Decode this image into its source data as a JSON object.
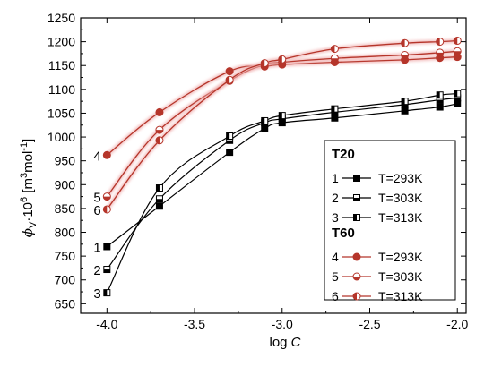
{
  "chart_data": {
    "type": "line",
    "xlabel_prefix": "log ",
    "xlabel_var": "C",
    "ylabel_phi": "ϕ",
    "ylabel_sub": "V",
    "ylabel_rest": "·10",
    "ylabel_exp": "6",
    "ylabel_unit_open": " [m",
    "ylabel_unit_3": "3",
    "ylabel_unit_mol": "mol",
    "ylabel_unit_m1": "-1",
    "ylabel_unit_close": "]",
    "xlim": [
      -4.15,
      -1.95
    ],
    "ylim": [
      630,
      1250
    ],
    "xticks": [
      -4.0,
      -3.5,
      -3.0,
      -2.5,
      -2.0
    ],
    "xtick_labels": [
      "-4.0",
      "-3.5",
      "-3.0",
      "-2.5",
      "-2.0"
    ],
    "yticks": [
      650,
      700,
      750,
      800,
      850,
      900,
      950,
      1000,
      1050,
      1100,
      1150,
      1200,
      1250
    ],
    "ytick_labels": [
      "650",
      "700",
      "750",
      "800",
      "850",
      "900",
      "950",
      "1000",
      "1050",
      "1100",
      "1150",
      "1200",
      "1250"
    ],
    "x": [
      -4.0,
      -3.7,
      -3.3,
      -3.1,
      -3.0,
      -2.7,
      -2.3,
      -2.1,
      -2.0
    ],
    "groups": [
      {
        "name": "T20",
        "color": "#000000",
        "series": [
          {
            "id": "1",
            "name": "T=293K",
            "marker": "full",
            "values": [
              770,
              855,
              968,
              1018,
              1030,
              1040,
              1055,
              1063,
              1070
            ]
          },
          {
            "id": "2",
            "name": "T=303K",
            "marker": "bottom",
            "values": [
              722,
              870,
              993,
              1030,
              1038,
              1052,
              1068,
              1078,
              1082
            ]
          },
          {
            "id": "3",
            "name": "T=313K",
            "marker": "left",
            "values": [
              673,
              893,
              1002,
              1034,
              1045,
              1059,
              1075,
              1088,
              1091
            ]
          }
        ]
      },
      {
        "name": "T60",
        "color": "#b5352a",
        "series": [
          {
            "id": "4",
            "name": "T=293K",
            "marker": "full",
            "values": [
              962,
              1052,
              1138,
              1148,
              1152,
              1157,
              1162,
              1166,
              1168
            ]
          },
          {
            "id": "5",
            "name": "T=303K",
            "marker": "bottom",
            "values": [
              875,
              1015,
              1118,
              1152,
              1157,
              1165,
              1172,
              1177,
              1180
            ]
          },
          {
            "id": "6",
            "name": "T=313K",
            "marker": "left",
            "values": [
              848,
              993,
              1120,
              1155,
              1163,
              1185,
              1197,
              1200,
              1202
            ]
          }
        ]
      }
    ]
  }
}
